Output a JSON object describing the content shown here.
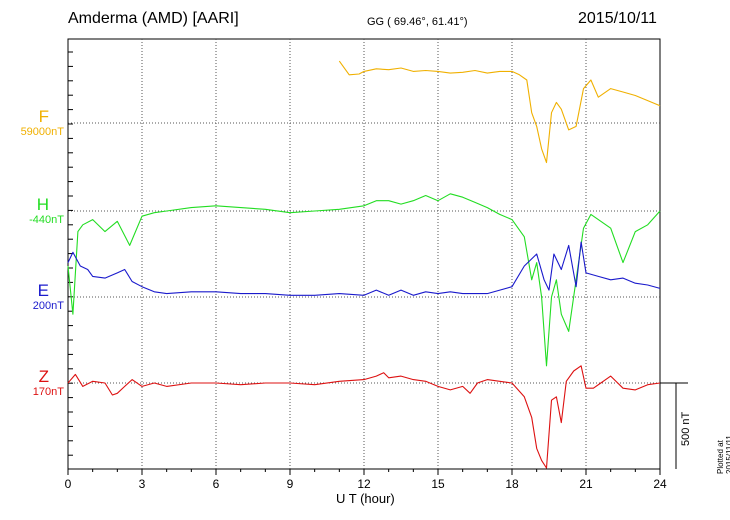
{
  "header": {
    "station": "Amderma (AMD)  [AARI]",
    "coords": "GG ( 69.46°,  61.41°)",
    "date": "2015/10/11"
  },
  "components": [
    {
      "letter": "F",
      "baseline": "59000nT",
      "color": "#f0b000"
    },
    {
      "letter": "H",
      "baseline": "-440nT",
      "color": "#22dd22"
    },
    {
      "letter": "E",
      "baseline": "200nT",
      "color": "#1a1acc"
    },
    {
      "letter": "Z",
      "baseline": "170nT",
      "color": "#dd1111"
    }
  ],
  "footer": {
    "xaxis_label": "U T (hour)",
    "scale_label": "500 nT",
    "plotted_at": "Plotted at 2015/11/11 01:29 UT"
  },
  "chart_data": {
    "type": "line",
    "xlabel": "U T (hour)",
    "xlim": [
      0,
      24
    ],
    "xticks": [
      0,
      3,
      6,
      9,
      12,
      15,
      18,
      21,
      24
    ],
    "scale_bar_nT": 500,
    "grid": true,
    "series": [
      {
        "name": "F",
        "color": "#f0b000",
        "baseline": "59000nT",
        "x": [
          11.0,
          11.4,
          11.8,
          12.0,
          12.5,
          13.0,
          13.5,
          14.0,
          14.5,
          15.0,
          15.5,
          16.0,
          16.5,
          17.0,
          17.5,
          18.0,
          18.3,
          18.6,
          18.8,
          19.0,
          19.2,
          19.4,
          19.6,
          19.8,
          20.0,
          20.3,
          20.6,
          20.9,
          21.2,
          21.5,
          22.0,
          22.5,
          23.0,
          23.5,
          24.0
        ],
        "y": [
          360,
          280,
          285,
          300,
          315,
          310,
          320,
          300,
          305,
          300,
          290,
          295,
          305,
          290,
          300,
          300,
          280,
          250,
          60,
          -20,
          -150,
          -230,
          60,
          120,
          80,
          -40,
          -20,
          200,
          250,
          150,
          200,
          180,
          160,
          130,
          100
        ]
      },
      {
        "name": "H",
        "color": "#22dd22",
        "baseline": "-440nT",
        "x": [
          0,
          0.2,
          0.4,
          0.6,
          1.0,
          1.5,
          2.0,
          2.5,
          3.0,
          3.5,
          4.0,
          5.0,
          6.0,
          7.0,
          8.0,
          9.0,
          10.0,
          11.0,
          12.0,
          12.5,
          13.0,
          13.5,
          14.0,
          14.5,
          15.0,
          15.5,
          16.0,
          16.5,
          17.0,
          17.5,
          18.0,
          18.5,
          18.8,
          19.0,
          19.2,
          19.4,
          19.6,
          19.8,
          20.0,
          20.3,
          20.6,
          20.9,
          21.2,
          21.5,
          22.0,
          22.5,
          23.0,
          23.5,
          24.0
        ],
        "y": [
          -320,
          -600,
          -120,
          -80,
          -50,
          -120,
          -60,
          -200,
          -30,
          -10,
          0,
          20,
          30,
          20,
          10,
          -10,
          0,
          10,
          30,
          60,
          60,
          40,
          60,
          90,
          60,
          100,
          80,
          50,
          20,
          -20,
          -50,
          -150,
          -400,
          -300,
          -500,
          -900,
          -500,
          -400,
          -600,
          -700,
          -400,
          -100,
          -20,
          -50,
          -100,
          -300,
          -120,
          -80,
          0
        ]
      },
      {
        "name": "E",
        "color": "#1a1acc",
        "baseline": "200nT",
        "x": [
          0,
          0.2,
          0.5,
          0.8,
          1.0,
          1.5,
          2.0,
          2.3,
          2.6,
          3.0,
          3.5,
          4.0,
          5.0,
          6.0,
          7.0,
          8.0,
          9.0,
          10.0,
          11.0,
          12.0,
          12.5,
          13.0,
          13.5,
          14.0,
          14.5,
          15.0,
          15.5,
          16.0,
          17.0,
          18.0,
          18.5,
          19.0,
          19.3,
          19.5,
          19.7,
          20.0,
          20.3,
          20.6,
          20.8,
          21.0,
          21.5,
          22.0,
          22.5,
          23.0,
          23.5,
          24.0
        ],
        "y": [
          200,
          260,
          180,
          160,
          120,
          110,
          140,
          160,
          90,
          60,
          30,
          20,
          30,
          30,
          20,
          20,
          10,
          10,
          20,
          10,
          40,
          10,
          40,
          10,
          30,
          20,
          30,
          20,
          20,
          60,
          180,
          250,
          100,
          40,
          250,
          160,
          300,
          60,
          320,
          140,
          120,
          100,
          110,
          80,
          70,
          50
        ]
      },
      {
        "name": "Z",
        "color": "#dd1111",
        "baseline": "170nT",
        "x": [
          0,
          0.3,
          0.6,
          1.0,
          1.5,
          1.8,
          2.0,
          2.3,
          2.6,
          3.0,
          3.5,
          4.0,
          5.0,
          6.0,
          7.0,
          8.0,
          9.0,
          10.0,
          11.0,
          12.0,
          12.5,
          12.8,
          13.0,
          13.5,
          14.0,
          14.5,
          15.0,
          15.5,
          16.0,
          16.3,
          16.6,
          17.0,
          17.5,
          18.0,
          18.5,
          18.8,
          19.0,
          19.2,
          19.4,
          19.6,
          19.8,
          20.0,
          20.2,
          20.5,
          20.8,
          21.0,
          21.3,
          21.6,
          22.0,
          22.5,
          23.0,
          23.5,
          24.0
        ],
        "y": [
          0,
          50,
          -20,
          10,
          0,
          -70,
          -60,
          -20,
          20,
          -20,
          0,
          -20,
          0,
          0,
          -10,
          0,
          0,
          -10,
          10,
          20,
          40,
          60,
          30,
          40,
          20,
          10,
          -20,
          -40,
          -20,
          -60,
          0,
          20,
          10,
          0,
          -80,
          -200,
          -380,
          -450,
          -520,
          -100,
          -80,
          -230,
          10,
          70,
          100,
          -30,
          -30,
          0,
          40,
          -30,
          -40,
          -10,
          0
        ]
      }
    ]
  }
}
